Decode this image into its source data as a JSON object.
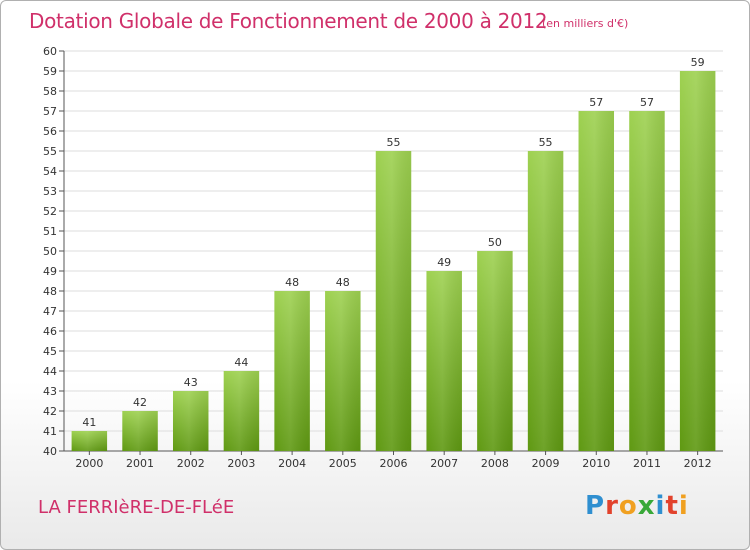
{
  "header": {
    "title": "Dotation Globale de Fonctionnement de 2000 à 2012",
    "subtitle": "(en milliers d'€)"
  },
  "footer": {
    "commune": "LA FERRIèRE-DE-FLéE",
    "logo": {
      "letters": [
        "P",
        "r",
        "o",
        "x",
        "i",
        "t",
        "i"
      ],
      "colors": [
        "#2f8fd0",
        "#e2422c",
        "#f0a020",
        "#38a838",
        "#2f8fd0",
        "#e2422c",
        "#f0a020"
      ]
    }
  },
  "colors": {
    "title": "#d0306a",
    "bar_top": "#9ed151",
    "bar_bottom": "#5f9912",
    "grid": "#dddddd"
  },
  "chart_data": {
    "type": "bar",
    "title": "Dotation Globale de Fonctionnement de 2000 à 2012",
    "subtitle": "(en milliers d'€)",
    "categories": [
      "2000",
      "2001",
      "2002",
      "2003",
      "2004",
      "2005",
      "2006",
      "2007",
      "2008",
      "2009",
      "2010",
      "2011",
      "2012"
    ],
    "values": [
      41,
      42,
      43,
      44,
      48,
      48,
      55,
      49,
      50,
      55,
      57,
      57,
      59
    ],
    "ylim": [
      40,
      60
    ],
    "yticks": [
      40,
      41,
      42,
      43,
      44,
      45,
      46,
      47,
      48,
      49,
      50,
      51,
      52,
      53,
      54,
      55,
      56,
      57,
      58,
      59,
      60
    ],
    "xlabel": "",
    "ylabel": "",
    "grid": true,
    "data_labels": true
  }
}
